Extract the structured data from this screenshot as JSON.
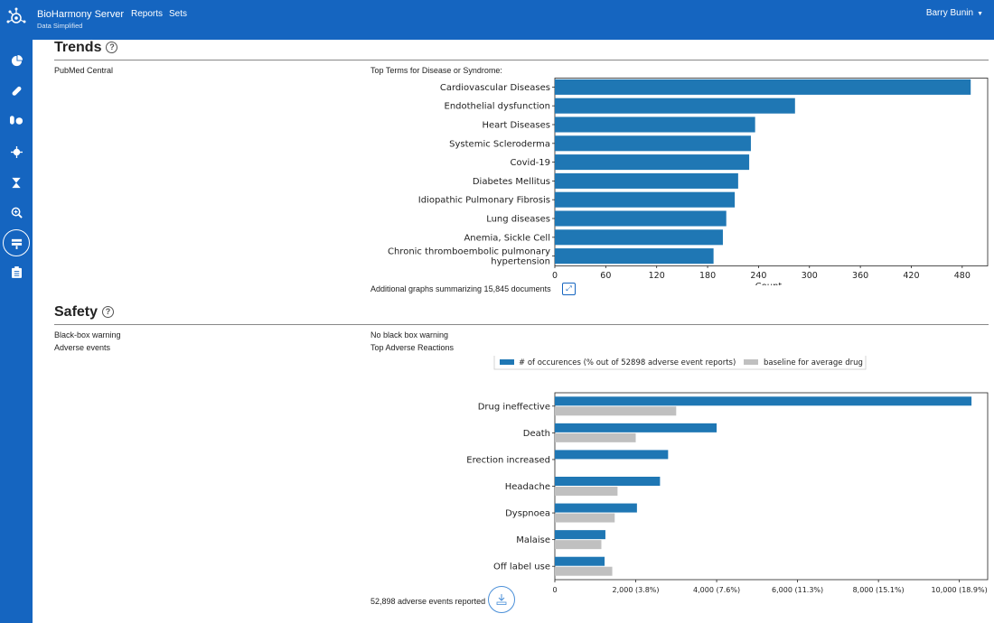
{
  "app": {
    "title": "BioHarmony Server",
    "subtitle": "Data Simplified"
  },
  "nav": {
    "reports": "Reports",
    "sets": "Sets"
  },
  "user": {
    "name": "Barry Bunin"
  },
  "sidebar": {
    "items": [
      "pie-chart-icon",
      "pill-icon",
      "capsules-icon",
      "virus-icon",
      "dna-icon",
      "search-plus-icon",
      "layer-group-icon",
      "clipboard-icon"
    ]
  },
  "trends": {
    "title": "Trends",
    "source_label": "PubMed Central",
    "chart_label": "Top Terms for Disease or Syndrome:",
    "footer": "Additional graphs summarizing 15,845 documents"
  },
  "safety": {
    "title": "Safety",
    "bbw_label": "Black-box warning",
    "bbw_value": "No black box warning",
    "ae_label": "Adverse events",
    "ae_value": "Top Adverse Reactions",
    "footer": "52,898 adverse events reported"
  },
  "colors": {
    "primary": "#1565c0",
    "bar": "#1f77b4",
    "baseline": "#c0c0c0"
  },
  "chart_data": [
    {
      "type": "bar",
      "orientation": "horizontal",
      "categories": [
        "Cardiovascular Diseases",
        "Endothelial dysfunction",
        "Heart Diseases",
        "Systemic Scleroderma",
        "Covid-19",
        "Diabetes Mellitus",
        "Idiopathic Pulmonary Fibrosis",
        "Lung diseases",
        "Anemia, Sickle Cell",
        "Chronic thromboembolic pulmonary hypertension"
      ],
      "category_lines": [
        [
          "Cardiovascular Diseases"
        ],
        [
          "Endothelial dysfunction"
        ],
        [
          "Heart Diseases"
        ],
        [
          "Systemic Scleroderma"
        ],
        [
          "Covid-19"
        ],
        [
          "Diabetes Mellitus"
        ],
        [
          "Idiopathic Pulmonary Fibrosis"
        ],
        [
          "Lung diseases"
        ],
        [
          "Anemia, Sickle Cell"
        ],
        [
          "Chronic thromboembolic pulmonary",
          "hypertension"
        ]
      ],
      "values": [
        490,
        283,
        236,
        231,
        229,
        216,
        212,
        202,
        198,
        187
      ],
      "xlabel": "Count",
      "xlim": [
        0,
        510
      ],
      "xticks": [
        0,
        60,
        120,
        180,
        240,
        300,
        360,
        420,
        480
      ],
      "xtick_labels": [
        "0",
        "60",
        "120",
        "180",
        "240",
        "300",
        "360",
        "420",
        "480"
      ],
      "grid": false
    },
    {
      "type": "bar",
      "orientation": "horizontal",
      "categories": [
        "Drug ineffective",
        "Death",
        "Erection increased",
        "Headache",
        "Dyspnoea",
        "Malaise",
        "Off label use"
      ],
      "series": [
        {
          "name": "# of occurences (% out of 52898 adverse event reports)",
          "values": [
            10300,
            4000,
            2800,
            2600,
            2030,
            1250,
            1230
          ]
        },
        {
          "name": "baseline for average drug",
          "values": [
            3000,
            2000,
            null,
            1550,
            1480,
            1150,
            1420
          ]
        }
      ],
      "xlim": [
        0,
        10700
      ],
      "xticks": [
        0,
        2000,
        4000,
        6000,
        8000,
        10000
      ],
      "xtick_labels": [
        "0",
        "2,000 (3.8%)",
        "4,000 (7.6%)",
        "6,000 (11.3%)",
        "8,000 (15.1%)",
        "10,000 (18.9%)"
      ],
      "legend_position": "top",
      "grid": false
    }
  ]
}
